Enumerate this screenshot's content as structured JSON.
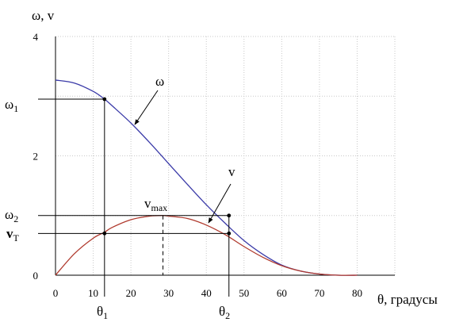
{
  "chart_data": {
    "type": "line",
    "title": "",
    "ylabel": "ω, v",
    "xlabel": "θ, градусы",
    "xlim": [
      0,
      90
    ],
    "ylim": [
      0,
      4
    ],
    "grid": true,
    "x_ticks": [
      "0",
      "10",
      "20",
      "30",
      "40",
      "50",
      "60",
      "70",
      "80"
    ],
    "y_ticks": [
      "0",
      "2",
      "4"
    ],
    "series": [
      {
        "name": "ω",
        "color": "#3a3aa8",
        "x": [
          0,
          5,
          10,
          13,
          15,
          20,
          25,
          30,
          35,
          40,
          45,
          50,
          55,
          60,
          65,
          70,
          75,
          80
        ],
        "y": [
          3.27,
          3.22,
          3.08,
          2.95,
          2.84,
          2.55,
          2.22,
          1.87,
          1.52,
          1.18,
          0.87,
          0.58,
          0.35,
          0.17,
          0.07,
          0.02,
          0.0,
          0.0
        ]
      },
      {
        "name": "v",
        "color": "#b03a2e",
        "x": [
          0,
          5,
          10,
          13,
          15,
          20,
          25,
          28.5,
          30,
          35,
          40,
          45,
          50,
          55,
          60,
          65,
          70,
          75,
          80
        ],
        "y": [
          0,
          0.36,
          0.62,
          0.72,
          0.8,
          0.93,
          0.99,
          1.0,
          0.99,
          0.95,
          0.84,
          0.68,
          0.48,
          0.3,
          0.16,
          0.07,
          0.02,
          0.0,
          0.0
        ]
      }
    ],
    "annotations": {
      "omega_label": "ω",
      "v_label": "v",
      "omega1": "ω",
      "omega1_sub": "1",
      "omega2": "ω",
      "omega2_sub": "2",
      "vt": "v",
      "vt_sub": "Т",
      "vmax": "v",
      "vmax_sub": "max",
      "theta1": "θ",
      "theta1_sub": "1",
      "theta2": "θ",
      "theta2_sub": "2",
      "theta1_value": 13,
      "theta2_value": 46,
      "vmax_x": 28.5,
      "omega1_value": 2.95,
      "omega2_value": 1.0,
      "vt_value": 0.7
    }
  }
}
